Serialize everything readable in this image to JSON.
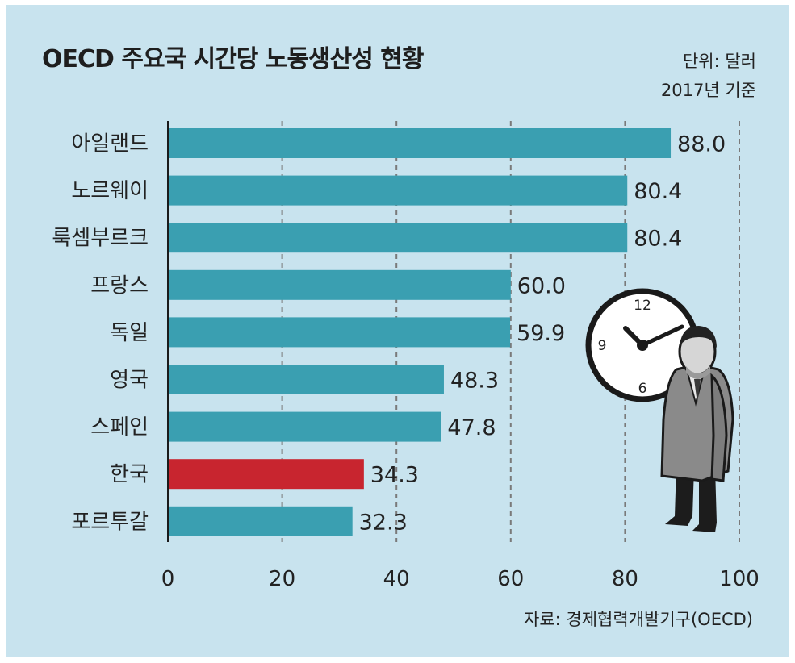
{
  "header": {
    "title": "OECD 주요국 시간당 노동생산성 현황",
    "unit": "단위: 달러",
    "basis": "2017년 기준"
  },
  "footer": {
    "source": "자료: 경제협력개발기구(OECD)"
  },
  "colors": {
    "background": "#c8e3ee",
    "bar": "#3a9fb1",
    "highlight": "#c8252f",
    "grid": "#7a7a7a"
  },
  "chart_data": {
    "type": "bar",
    "orientation": "horizontal",
    "title": "OECD 주요국 시간당 노동생산성 현황",
    "categories": [
      "아일랜드",
      "노르웨이",
      "룩셈부르크",
      "프랑스",
      "독일",
      "영국",
      "스페인",
      "한국",
      "포르투갈"
    ],
    "values": [
      88.0,
      80.4,
      80.4,
      60.0,
      59.9,
      48.3,
      47.8,
      34.3,
      32.3
    ],
    "value_labels": [
      "88.0",
      "80.4",
      "80.4",
      "60.0",
      "59.9",
      "48.3",
      "47.8",
      "34.3",
      "32.3"
    ],
    "highlight_category": "한국",
    "xlim": [
      0,
      100
    ],
    "xticks": [
      0,
      20,
      40,
      60,
      80,
      100
    ],
    "grid": "vertical dashed"
  }
}
